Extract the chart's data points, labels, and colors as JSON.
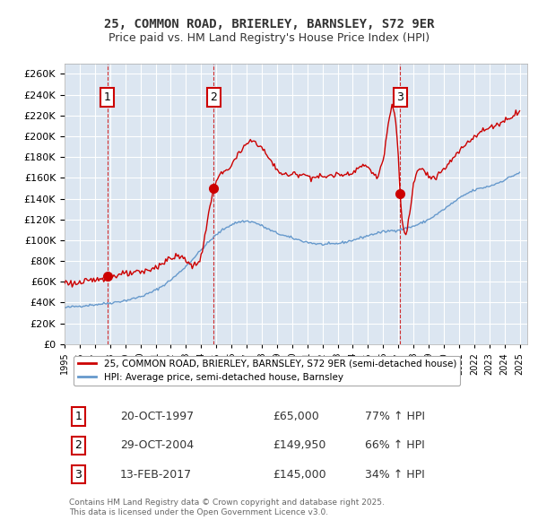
{
  "title_line1": "25, COMMON ROAD, BRIERLEY, BARNSLEY, S72 9ER",
  "title_line2": "Price paid vs. HM Land Registry's House Price Index (HPI)",
  "background_color": "#dce6f1",
  "plot_bg_color": "#dce6f1",
  "fig_bg_color": "#ffffff",
  "red_color": "#cc0000",
  "blue_color": "#6699cc",
  "grid_color": "#ffffff",
  "sale1_date": 1997.81,
  "sale1_price": 65000,
  "sale2_date": 2004.83,
  "sale2_price": 149950,
  "sale3_date": 2017.12,
  "sale3_price": 145000,
  "sale1_label": "1",
  "sale2_label": "2",
  "sale3_label": "3",
  "ylim_min": 0,
  "ylim_max": 270000,
  "ytick_step": 20000,
  "xlabel": "",
  "ylabel": "",
  "legend_line1": "25, COMMON ROAD, BRIERLEY, BARNSLEY, S72 9ER (semi-detached house)",
  "legend_line2": "HPI: Average price, semi-detached house, Barnsley",
  "table_entries": [
    {
      "num": "1",
      "date": "20-OCT-1997",
      "price": "£65,000",
      "hpi": "77% ↑ HPI"
    },
    {
      "num": "2",
      "date": "29-OCT-2004",
      "price": "£149,950",
      "hpi": "66% ↑ HPI"
    },
    {
      "num": "3",
      "date": "13-FEB-2017",
      "price": "£145,000",
      "hpi": "34% ↑ HPI"
    }
  ],
  "footer": "Contains HM Land Registry data © Crown copyright and database right 2025.\nThis data is licensed under the Open Government Licence v3.0."
}
